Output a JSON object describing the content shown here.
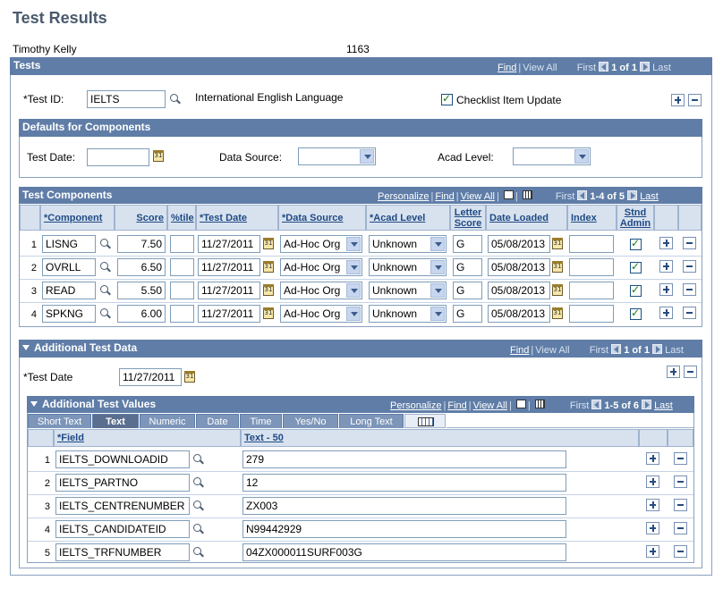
{
  "page": {
    "title": "Test Results",
    "person_name": "Timothy Kelly",
    "person_id": "1163"
  },
  "tests": {
    "header": "Tests",
    "nav": {
      "find": "Find",
      "view_all": "View All",
      "first": "First",
      "count": "1 of 1",
      "last": "Last"
    },
    "test_id_label": "*Test ID:",
    "test_id_value": "IELTS",
    "test_desc": "International English Language",
    "checklist_label": "Checklist Item Update",
    "checklist_checked": true
  },
  "defaults": {
    "header": "Defaults for Components",
    "test_date_label": "Test Date:",
    "data_source_label": "Data Source:",
    "acad_level_label": "Acad Level:"
  },
  "components": {
    "header": "Test Components",
    "nav": {
      "personalize": "Personalize",
      "find": "Find",
      "view_all": "View All",
      "first": "First",
      "count": "1-4 of 5",
      "last": "Last"
    },
    "columns": [
      "*Component",
      "Score",
      "%tile",
      "*Test Date",
      "*Data Source",
      "*Acad Level",
      "Letter Score",
      "Date Loaded",
      "Index",
      "Stnd Admin"
    ],
    "rows": [
      {
        "num": "1",
        "component": "LISNG",
        "score": "7.50",
        "percentile": "",
        "test_date": "11/27/2011",
        "data_source": "Ad-Hoc Org",
        "acad_level": "Unknown",
        "letter_score": "G",
        "date_loaded": "05/08/2013",
        "index": "",
        "stnd_admin": true
      },
      {
        "num": "2",
        "component": "OVRLL",
        "score": "6.50",
        "percentile": "",
        "test_date": "11/27/2011",
        "data_source": "Ad-Hoc Org",
        "acad_level": "Unknown",
        "letter_score": "G",
        "date_loaded": "05/08/2013",
        "index": "",
        "stnd_admin": true
      },
      {
        "num": "3",
        "component": "READ",
        "score": "5.50",
        "percentile": "",
        "test_date": "11/27/2011",
        "data_source": "Ad-Hoc Org",
        "acad_level": "Unknown",
        "letter_score": "G",
        "date_loaded": "05/08/2013",
        "index": "",
        "stnd_admin": true
      },
      {
        "num": "4",
        "component": "SPKNG",
        "score": "6.00",
        "percentile": "",
        "test_date": "11/27/2011",
        "data_source": "Ad-Hoc Org",
        "acad_level": "Unknown",
        "letter_score": "G",
        "date_loaded": "05/08/2013",
        "index": "",
        "stnd_admin": true
      }
    ]
  },
  "additional": {
    "header": "Additional Test Data",
    "nav": {
      "find": "Find",
      "view_all": "View All",
      "first": "First",
      "count": "1 of 1",
      "last": "Last"
    },
    "test_date_label": "*Test Date",
    "test_date_value": "11/27/2011"
  },
  "values": {
    "header": "Additional Test Values",
    "nav": {
      "personalize": "Personalize",
      "find": "Find",
      "view_all": "View All",
      "first": "First",
      "count": "1-5 of 6",
      "last": "Last"
    },
    "tabs": [
      "Short Text",
      "Text",
      "Numeric",
      "Date",
      "Time",
      "Yes/No",
      "Long Text"
    ],
    "active_tab": "Text",
    "columns": [
      "*Field",
      "Text - 50"
    ],
    "rows": [
      {
        "num": "1",
        "field": "IELTS_DOWNLOADID",
        "text": "279"
      },
      {
        "num": "2",
        "field": "IELTS_PARTNO",
        "text": "12"
      },
      {
        "num": "3",
        "field": "IELTS_CENTRENUMBER",
        "text": "ZX003"
      },
      {
        "num": "4",
        "field": "IELTS_CANDIDATEID",
        "text": "N99442929"
      },
      {
        "num": "5",
        "field": "IELTS_TRFNUMBER",
        "text": "04ZX000011SURF003G"
      }
    ]
  }
}
